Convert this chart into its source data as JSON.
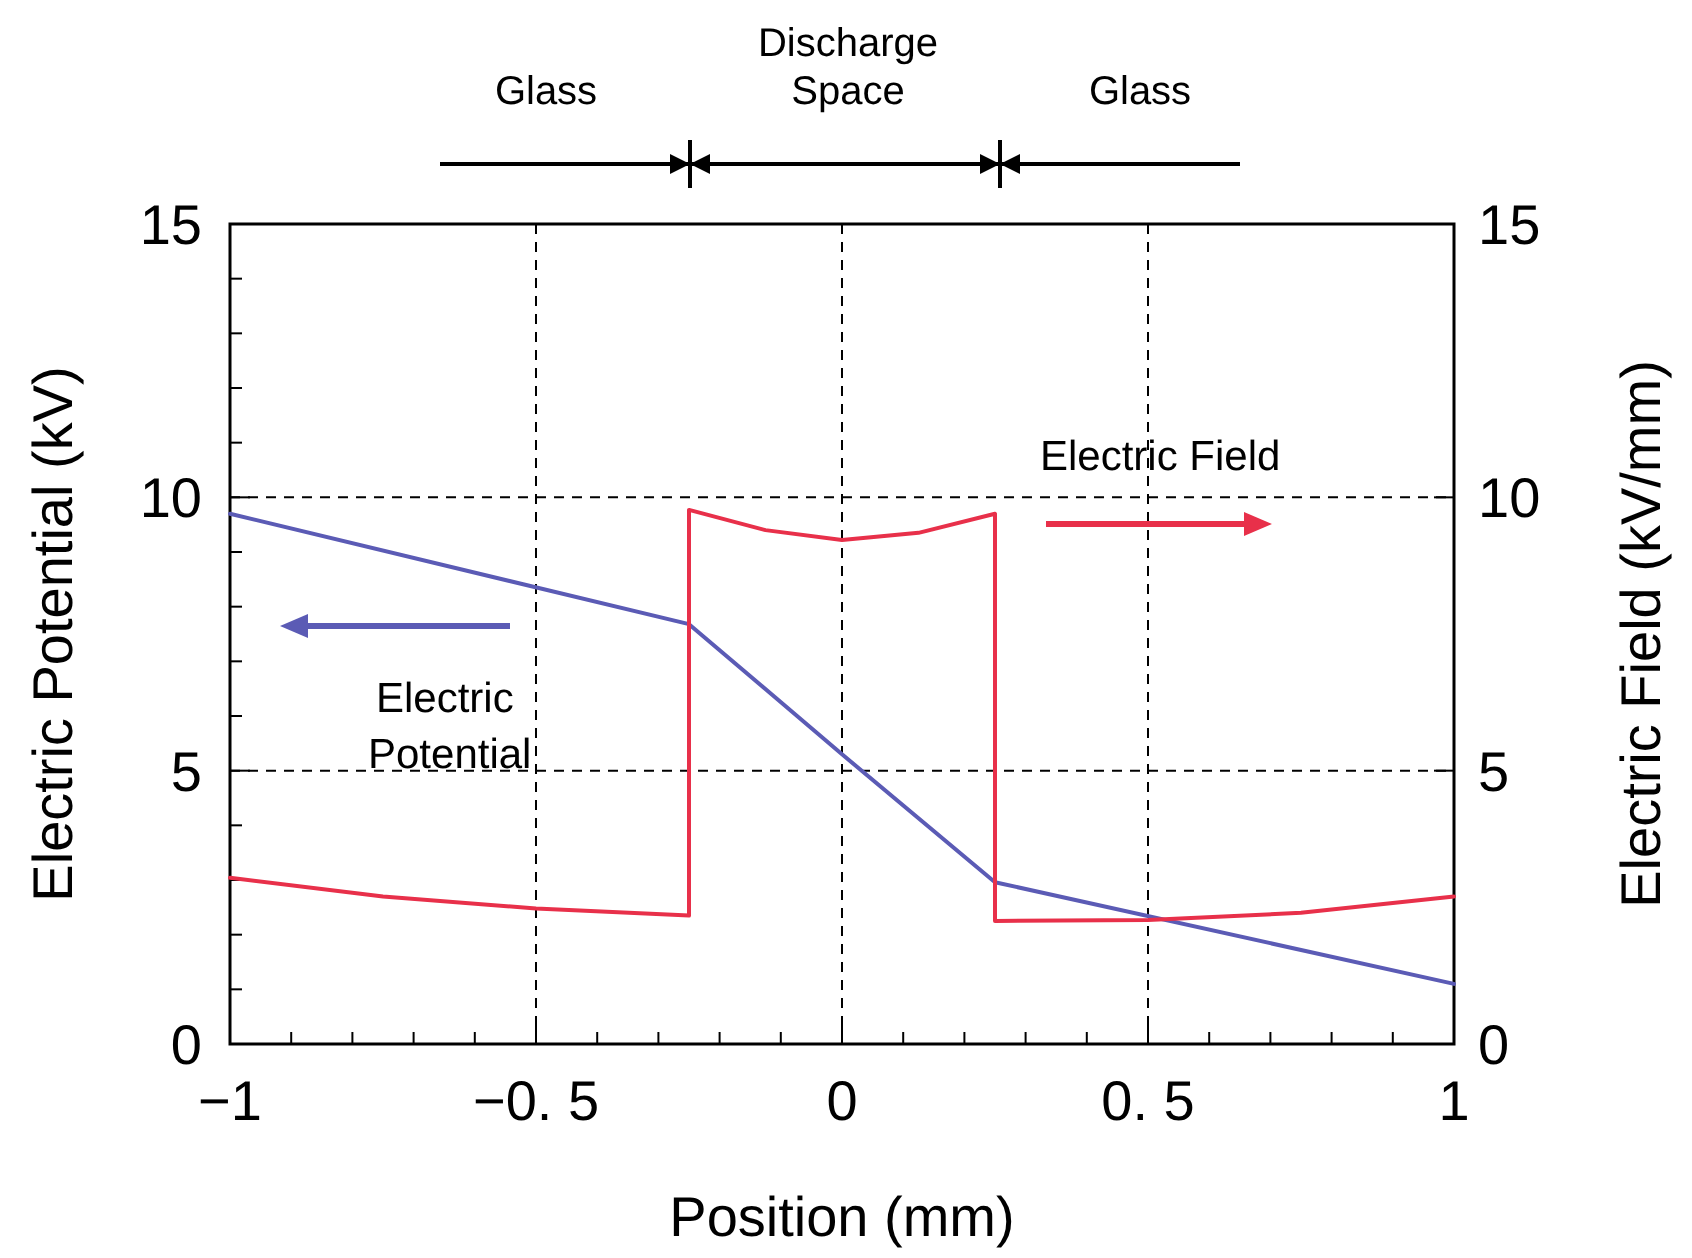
{
  "chart_data": {
    "type": "line",
    "xlabel": "Position (mm)",
    "ylabel": "Electric Potential (kV)",
    "y2label": "Electric Field (kV/mm)",
    "xlim": [
      -1,
      1
    ],
    "ylim": [
      0,
      15
    ],
    "y2lim": [
      0,
      15
    ],
    "xticks": [
      {
        "value": -1,
        "label": "−1"
      },
      {
        "value": -0.9,
        "label": null
      },
      {
        "value": -0.8,
        "label": null
      },
      {
        "value": -0.7,
        "label": null
      },
      {
        "value": -0.6,
        "label": null
      },
      {
        "value": -0.5,
        "label": "−0. 5"
      },
      {
        "value": -0.4,
        "label": null
      },
      {
        "value": -0.3,
        "label": null
      },
      {
        "value": -0.2,
        "label": null
      },
      {
        "value": -0.1,
        "label": null
      },
      {
        "value": 0,
        "label": "0"
      },
      {
        "value": 0.1,
        "label": null
      },
      {
        "value": 0.2,
        "label": null
      },
      {
        "value": 0.3,
        "label": null
      },
      {
        "value": 0.4,
        "label": null
      },
      {
        "value": 0.5,
        "label": "0. 5"
      },
      {
        "value": 0.6,
        "label": null
      },
      {
        "value": 0.7,
        "label": null
      },
      {
        "value": 0.8,
        "label": null
      },
      {
        "value": 0.9,
        "label": null
      },
      {
        "value": 1,
        "label": "1"
      }
    ],
    "yticks": [
      0,
      {
        "value": 1,
        "label": null
      },
      {
        "value": 2,
        "label": null
      },
      {
        "value": 3,
        "label": null
      },
      {
        "value": 4,
        "label": null
      },
      5,
      {
        "value": 6,
        "label": null
      },
      {
        "value": 7,
        "label": null
      },
      {
        "value": 8,
        "label": null
      },
      {
        "value": 9,
        "label": null
      },
      10,
      {
        "value": 11,
        "label": null
      },
      {
        "value": 12,
        "label": null
      },
      {
        "value": 13,
        "label": null
      },
      {
        "value": 14,
        "label": null
      },
      15
    ],
    "y2ticks": [
      0,
      5,
      10,
      15
    ],
    "grid": true,
    "line_style": "solid",
    "series": [
      {
        "name": "Electric Potential",
        "color": "#5b5bb5",
        "x": [
          -1,
          -0.25,
          0,
          0.25,
          1
        ],
        "values": [
          9.7,
          7.68,
          5.3,
          2.96,
          1.1
        ]
      },
      {
        "name": "Electric Field",
        "color": "#e8304a",
        "axis": "y2",
        "x": [
          -1,
          -0.75,
          -0.5,
          -0.25,
          -0.25,
          -0.125,
          0,
          0.125,
          0.25,
          0.25,
          0.5,
          0.75,
          1
        ],
        "values": [
          3.04,
          2.7,
          2.48,
          2.35,
          9.77,
          9.4,
          9.22,
          9.35,
          9.7,
          2.25,
          2.27,
          2.4,
          2.7
        ]
      }
    ],
    "annotations": [
      "Glass",
      "Discharge\nSpace",
      "Glass"
    ]
  }
}
